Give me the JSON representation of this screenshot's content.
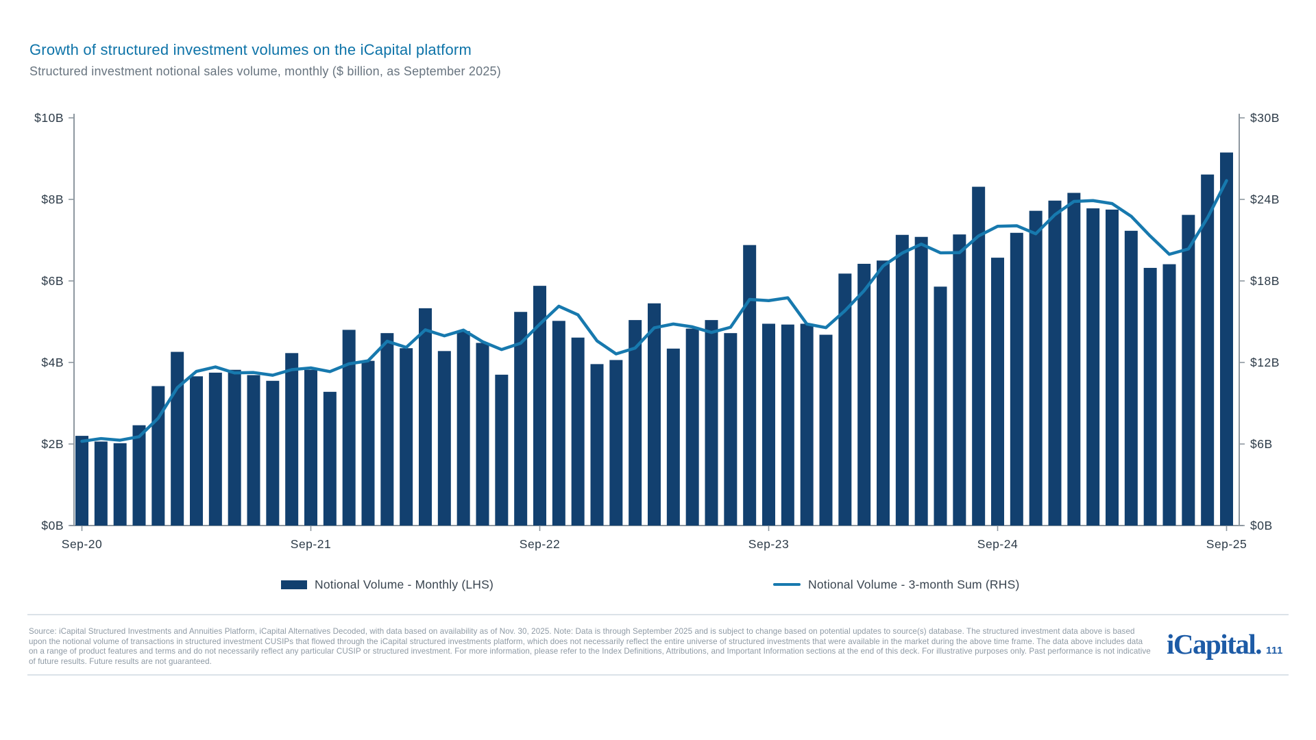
{
  "header": {
    "title": "Growth of structured investment volumes on the iCapital platform",
    "subtitle": "Structured investment notional sales volume, monthly ($ billion, as September 2025)"
  },
  "chart_data": {
    "type": "bar",
    "title": "Structured investment notional sales volume, monthly",
    "grid": false,
    "legend_position": "bottom",
    "categories": [
      "Sep-20",
      "Oct-20",
      "Nov-20",
      "Dec-20",
      "Jan-21",
      "Feb-21",
      "Mar-21",
      "Apr-21",
      "May-21",
      "Jun-21",
      "Jul-21",
      "Aug-21",
      "Sep-21",
      "Oct-21",
      "Nov-21",
      "Dec-21",
      "Jan-22",
      "Feb-22",
      "Mar-22",
      "Apr-22",
      "May-22",
      "Jun-22",
      "Jul-22",
      "Aug-22",
      "Sep-22",
      "Oct-22",
      "Nov-22",
      "Dec-22",
      "Jan-23",
      "Feb-23",
      "Mar-23",
      "Apr-23",
      "May-23",
      "Jun-23",
      "Jul-23",
      "Aug-23",
      "Sep-23",
      "Oct-23",
      "Nov-23",
      "Dec-23",
      "Jan-24",
      "Feb-24",
      "Mar-24",
      "Apr-24",
      "May-24",
      "Jun-24",
      "Jul-24",
      "Aug-24",
      "Sep-24",
      "Oct-24",
      "Nov-24",
      "Dec-24",
      "Jan-25",
      "Feb-25",
      "Mar-25",
      "Apr-25",
      "May-25",
      "Jun-25",
      "Jul-25",
      "Aug-25",
      "Sep-25"
    ],
    "x_tick_labels": [
      "Sep-20",
      "Sep-21",
      "Sep-22",
      "Sep-23",
      "Sep-24",
      "Sep-25"
    ],
    "left_axis": {
      "ticks": [
        "$0B",
        "$2B",
        "$4B",
        "$6B",
        "$8B",
        "$10B"
      ],
      "min": 0,
      "max": 10
    },
    "right_axis": {
      "ticks": [
        "$0B",
        "$6B",
        "$12B",
        "$18B",
        "$24B",
        "$30B"
      ],
      "min": 0,
      "max": 30
    },
    "series": [
      {
        "name": "Notional Volume - Monthly (LHS)",
        "type": "bar",
        "axis": "left",
        "color": "#12406f",
        "values": [
          2.2,
          2.06,
          2.02,
          2.46,
          3.42,
          4.26,
          3.66,
          3.75,
          3.82,
          3.69,
          3.55,
          4.23,
          3.82,
          3.28,
          4.8,
          4.04,
          4.72,
          4.35,
          5.33,
          4.28,
          4.77,
          4.48,
          3.7,
          5.24,
          5.88,
          5.02,
          4.61,
          3.96,
          4.06,
          5.04,
          5.45,
          4.34,
          4.83,
          5.04,
          4.72,
          6.88,
          4.95,
          4.93,
          4.95,
          4.68,
          6.18,
          6.42,
          6.5,
          7.13,
          7.08,
          5.86,
          7.14,
          8.31,
          6.57,
          7.18,
          7.72,
          7.97,
          8.16,
          7.78,
          7.75,
          7.23,
          6.32,
          6.41,
          7.62,
          8.61,
          9.15
        ]
      },
      {
        "name": "Notional Volume - 3-month Sum (RHS)",
        "type": "line",
        "axis": "right",
        "color": "#1779ae",
        "values": [
          6.2,
          6.4,
          6.28,
          6.54,
          7.9,
          10.14,
          11.34,
          11.67,
          11.23,
          11.26,
          11.06,
          11.47,
          11.6,
          11.33,
          11.9,
          12.12,
          13.56,
          13.11,
          14.4,
          13.96,
          14.38,
          13.53,
          12.95,
          13.42,
          14.82,
          16.14,
          15.51,
          13.59,
          12.63,
          13.06,
          14.55,
          14.83,
          14.62,
          14.21,
          14.59,
          16.64,
          16.55,
          16.76,
          14.83,
          14.56,
          15.81,
          17.28,
          19.1,
          20.05,
          20.71,
          20.07,
          20.08,
          21.31,
          22.02,
          22.06,
          21.47,
          22.87,
          23.85,
          23.91,
          23.69,
          22.76,
          21.3,
          19.96,
          20.35,
          22.64,
          25.38
        ]
      }
    ]
  },
  "legend": {
    "items": [
      {
        "label": "Notional Volume - Monthly (LHS)",
        "swatch": "bar",
        "color": "#12406f"
      },
      {
        "label": "Notional Volume - 3-month Sum (RHS)",
        "swatch": "line",
        "color": "#1779ae"
      }
    ]
  },
  "footer": {
    "source_text": "Source: iCapital Structured Investments and Annuities Platform, iCapital Alternatives Decoded, with data based on availability as of Nov. 30, 2025. Note: Data is through September 2025 and is subject to change based on potential updates to source(s) database. The structured investment data above is based upon the notional volume of transactions in structured investment CUSIPs that flowed through the iCapital structured investments platform, which does not necessarily reflect the entire universe of structured investments that were available in the market during the above time frame. The data above includes data on a range of product features and terms and do not necessarily reflect any particular CUSIP or structured investment. For more information, please refer to the Index Definitions, Attributions, and Important Information sections at the end of this deck. For illustrative purposes only. Past performance is not indicative of future results. Future results are not guaranteed.",
    "logo_text": "iCapital.",
    "page_number": "111"
  },
  "colors": {
    "title": "#0d73a8",
    "subtitle": "#68747f",
    "bar": "#12406f",
    "line": "#1779ae",
    "axis": "#8d979f",
    "axis_label": "#2d3b48",
    "footer_text": "#8d99a4",
    "logo": "#1d5ba6",
    "divider": "#dbe2e8"
  }
}
